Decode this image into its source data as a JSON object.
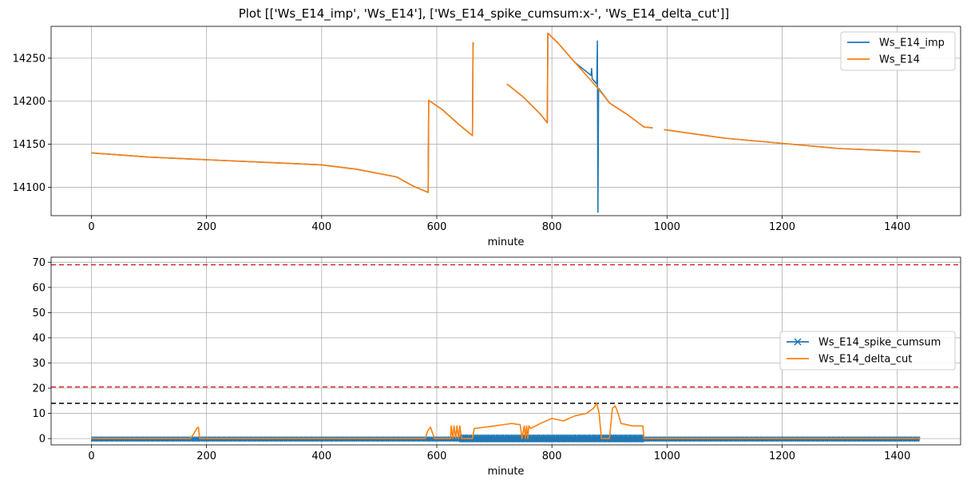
{
  "figure": {
    "title": "Plot [['Ws_E14_imp', 'Ws_E14'], ['Ws_E14_spike_cumsum:x-', 'Ws_E14_delta_cut']]"
  },
  "chart_data": [
    {
      "type": "line",
      "xlabel": "minute",
      "ylabel": "",
      "xlim": [
        -70,
        1510
      ],
      "ylim": [
        14067,
        14287
      ],
      "xticks": [
        0,
        200,
        400,
        600,
        800,
        1000,
        1200,
        1400
      ],
      "yticks": [
        14100,
        14150,
        14200,
        14250
      ],
      "grid": true,
      "legend_position": "top-right",
      "series": [
        {
          "name": "Ws_E14_imp",
          "color": "#1f77b4",
          "points": [
            [
              0,
              14140
            ],
            [
              100,
              14135
            ],
            [
              200,
              14132
            ],
            [
              300,
              14129
            ],
            [
              400,
              14126
            ],
            [
              460,
              14121
            ],
            [
              530,
              14112
            ],
            [
              560,
              14101
            ],
            [
              585,
              14094
            ],
            [
              586,
              14201
            ],
            [
              610,
              14190
            ],
            [
              640,
              14172
            ],
            [
              662,
              14160
            ],
            [
              663,
              14268
            ],
            [
              664,
              14266
            ],
            [
              null,
              null
            ],
            [
              722,
              14220
            ],
            [
              750,
              14205
            ],
            [
              780,
              14185
            ],
            [
              792,
              14175
            ],
            [
              793,
              14279
            ],
            [
              810,
              14268
            ],
            [
              840,
              14245
            ],
            [
              868,
              14230
            ],
            [
              869,
              14238
            ],
            [
              870,
              14226
            ],
            [
              878,
              14220
            ],
            [
              879,
              14270
            ],
            [
              880,
              14071
            ],
            [
              881,
              14215
            ],
            [
              900,
              14198
            ],
            [
              930,
              14185
            ],
            [
              960,
              14170
            ],
            [
              975,
              14169
            ],
            [
              null,
              null
            ],
            [
              995,
              14167
            ],
            [
              1100,
              14157
            ],
            [
              1200,
              14151
            ],
            [
              1300,
              14145
            ],
            [
              1440,
              14141
            ]
          ]
        },
        {
          "name": "Ws_E14",
          "color": "#ff7f0e",
          "points": [
            [
              0,
              14140
            ],
            [
              100,
              14135
            ],
            [
              200,
              14132
            ],
            [
              300,
              14129
            ],
            [
              400,
              14126
            ],
            [
              460,
              14121
            ],
            [
              530,
              14112
            ],
            [
              560,
              14101
            ],
            [
              585,
              14094
            ],
            [
              586,
              14201
            ],
            [
              610,
              14190
            ],
            [
              640,
              14172
            ],
            [
              662,
              14160
            ],
            [
              663,
              14268
            ],
            [
              664,
              14266
            ],
            [
              null,
              null
            ],
            [
              722,
              14220
            ],
            [
              750,
              14205
            ],
            [
              780,
              14185
            ],
            [
              792,
              14175
            ],
            [
              793,
              14279
            ],
            [
              810,
              14268
            ],
            [
              840,
              14245
            ],
            [
              880,
              14215
            ],
            [
              900,
              14198
            ],
            [
              930,
              14185
            ],
            [
              960,
              14170
            ],
            [
              975,
              14169
            ],
            [
              null,
              null
            ],
            [
              995,
              14167
            ],
            [
              1100,
              14157
            ],
            [
              1200,
              14151
            ],
            [
              1300,
              14145
            ],
            [
              1440,
              14141
            ]
          ]
        }
      ]
    },
    {
      "type": "line",
      "xlabel": "minute",
      "ylabel": "",
      "xlim": [
        -70,
        1510
      ],
      "ylim": [
        -2.5,
        72
      ],
      "xticks": [
        0,
        200,
        400,
        600,
        800,
        1000,
        1200,
        1400
      ],
      "yticks": [
        0,
        10,
        20,
        30,
        40,
        50,
        60,
        70
      ],
      "grid": true,
      "legend_position": "center-right",
      "hlines": [
        {
          "y": 69,
          "color": "#d62728",
          "style": "dashed"
        },
        {
          "y": 20.5,
          "color": "#d62728",
          "style": "dashed"
        },
        {
          "y": 14,
          "color": "#000000",
          "style": "dashed"
        }
      ],
      "series": [
        {
          "name": "Ws_E14_spike_cumsum",
          "color": "#1f77b4",
          "marker": "x",
          "zigzag": [
            [
              0,
              1440,
              -1.2,
              0.8
            ],
            [
              640,
              960,
              -1.5,
              1.6
            ]
          ]
        },
        {
          "name": "Ws_E14_delta_cut",
          "color": "#ff7f0e",
          "points": [
            [
              0,
              0
            ],
            [
              172,
              0
            ],
            [
              178,
              2
            ],
            [
              183,
              4
            ],
            [
              186,
              4.5
            ],
            [
              188,
              0
            ],
            [
              580,
              0
            ],
            [
              584,
              3
            ],
            [
              589,
              4.5
            ],
            [
              593,
              2
            ],
            [
              596,
              0
            ],
            [
              624,
              0
            ],
            [
              625,
              5
            ],
            [
              628,
              0
            ],
            [
              630,
              5
            ],
            [
              633,
              0
            ],
            [
              635,
              5
            ],
            [
              638,
              0
            ],
            [
              640,
              5
            ],
            [
              643,
              0
            ],
            [
              662,
              0
            ],
            [
              665,
              4
            ],
            [
              700,
              5
            ],
            [
              730,
              6
            ],
            [
              745,
              5.5
            ],
            [
              748,
              0
            ],
            [
              752,
              5
            ],
            [
              754,
              0
            ],
            [
              756,
              5
            ],
            [
              758,
              0
            ],
            [
              760,
              5
            ],
            [
              763,
              4
            ],
            [
              780,
              6
            ],
            [
              800,
              8
            ],
            [
              820,
              7
            ],
            [
              840,
              9
            ],
            [
              860,
              10
            ],
            [
              872,
              12
            ],
            [
              878,
              14
            ],
            [
              882,
              10
            ],
            [
              886,
              0
            ],
            [
              900,
              0
            ],
            [
              905,
              12
            ],
            [
              910,
              13
            ],
            [
              915,
              10
            ],
            [
              920,
              6
            ],
            [
              940,
              5
            ],
            [
              958,
              5
            ],
            [
              960,
              0
            ],
            [
              1440,
              0
            ]
          ]
        }
      ]
    }
  ]
}
